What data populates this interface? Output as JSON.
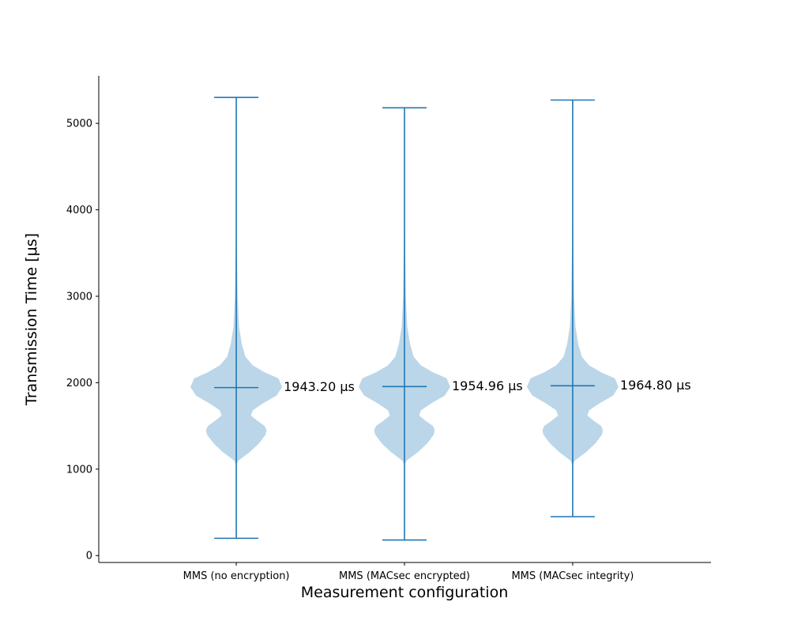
{
  "chart_data": {
    "type": "violin",
    "title": "",
    "xlabel": "Measurement configuration",
    "ylabel": "Transmission Time [μs]",
    "ylim": [
      -80,
      5550
    ],
    "yticks": [
      0,
      1000,
      2000,
      3000,
      4000,
      5000
    ],
    "grid": false,
    "legend": "none",
    "colors": {
      "body": "#1f77b4",
      "body_opacity": 0.3,
      "lines": "#1f77b4"
    },
    "categories": [
      "MMS (no encryption)",
      "MMS (MACsec encrypted)",
      "MMS (MACsec integrity)"
    ],
    "series": [
      {
        "min": 200,
        "max": 5300,
        "median": 1943.2,
        "median_label": "1943.20 μs"
      },
      {
        "min": 180,
        "max": 5180,
        "median": 1954.96,
        "median_label": "1954.96 μs"
      },
      {
        "min": 450,
        "max": 5270,
        "median": 1964.8,
        "median_label": "1964.80 μs"
      }
    ],
    "violin_profile": [
      [
        1050,
        0.0
      ],
      [
        1100,
        0.05
      ],
      [
        1200,
        0.3
      ],
      [
        1300,
        0.5
      ],
      [
        1400,
        0.64
      ],
      [
        1450,
        0.66
      ],
      [
        1500,
        0.62
      ],
      [
        1560,
        0.46
      ],
      [
        1620,
        0.32
      ],
      [
        1680,
        0.36
      ],
      [
        1760,
        0.58
      ],
      [
        1850,
        0.88
      ],
      [
        1950,
        1.0
      ],
      [
        2050,
        0.92
      ],
      [
        2120,
        0.62
      ],
      [
        2200,
        0.36
      ],
      [
        2300,
        0.2
      ],
      [
        2450,
        0.12
      ],
      [
        2650,
        0.06
      ],
      [
        3000,
        0.03
      ],
      [
        3500,
        0.015
      ],
      [
        4000,
        0.005
      ],
      [
        4300,
        0.0
      ]
    ]
  }
}
